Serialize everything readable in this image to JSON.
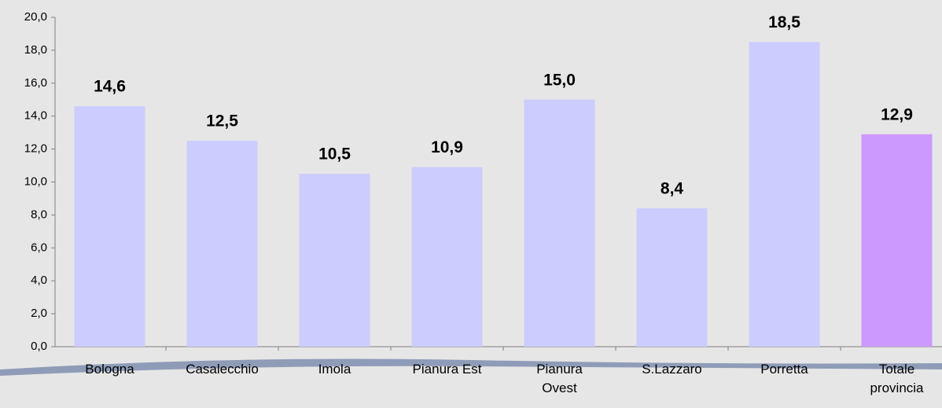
{
  "chart_data": {
    "type": "bar",
    "categories": [
      "Bologna",
      "Casalecchio",
      "Imola",
      "Pianura Est",
      "Pianura Ovest",
      "S.Lazzaro",
      "Porretta",
      "Totale provincia"
    ],
    "values": [
      14.6,
      12.5,
      10.5,
      10.9,
      15.0,
      8.4,
      18.5,
      12.9
    ],
    "value_labels": [
      "14,6",
      "12,5",
      "10,5",
      "10,9",
      "15,0",
      "8,4",
      "18,5",
      "12,9"
    ],
    "colors": [
      "#ccccff",
      "#ccccff",
      "#ccccff",
      "#ccccff",
      "#ccccff",
      "#ccccff",
      "#ccccff",
      "#cc99ff"
    ],
    "ylim": [
      0,
      20
    ],
    "yticks": [
      {
        "value": 0,
        "label": "0,0"
      },
      {
        "value": 2,
        "label": "2,0"
      },
      {
        "value": 4,
        "label": "4,0"
      },
      {
        "value": 6,
        "label": "6,0"
      },
      {
        "value": 8,
        "label": "8,0"
      },
      {
        "value": 10,
        "label": "10,0"
      },
      {
        "value": 12,
        "label": "12,0"
      },
      {
        "value": 14,
        "label": "14,0"
      },
      {
        "value": 16,
        "label": "16,0"
      },
      {
        "value": 18,
        "label": "18,0"
      },
      {
        "value": 20,
        "label": "20,0"
      }
    ],
    "grid": false
  }
}
